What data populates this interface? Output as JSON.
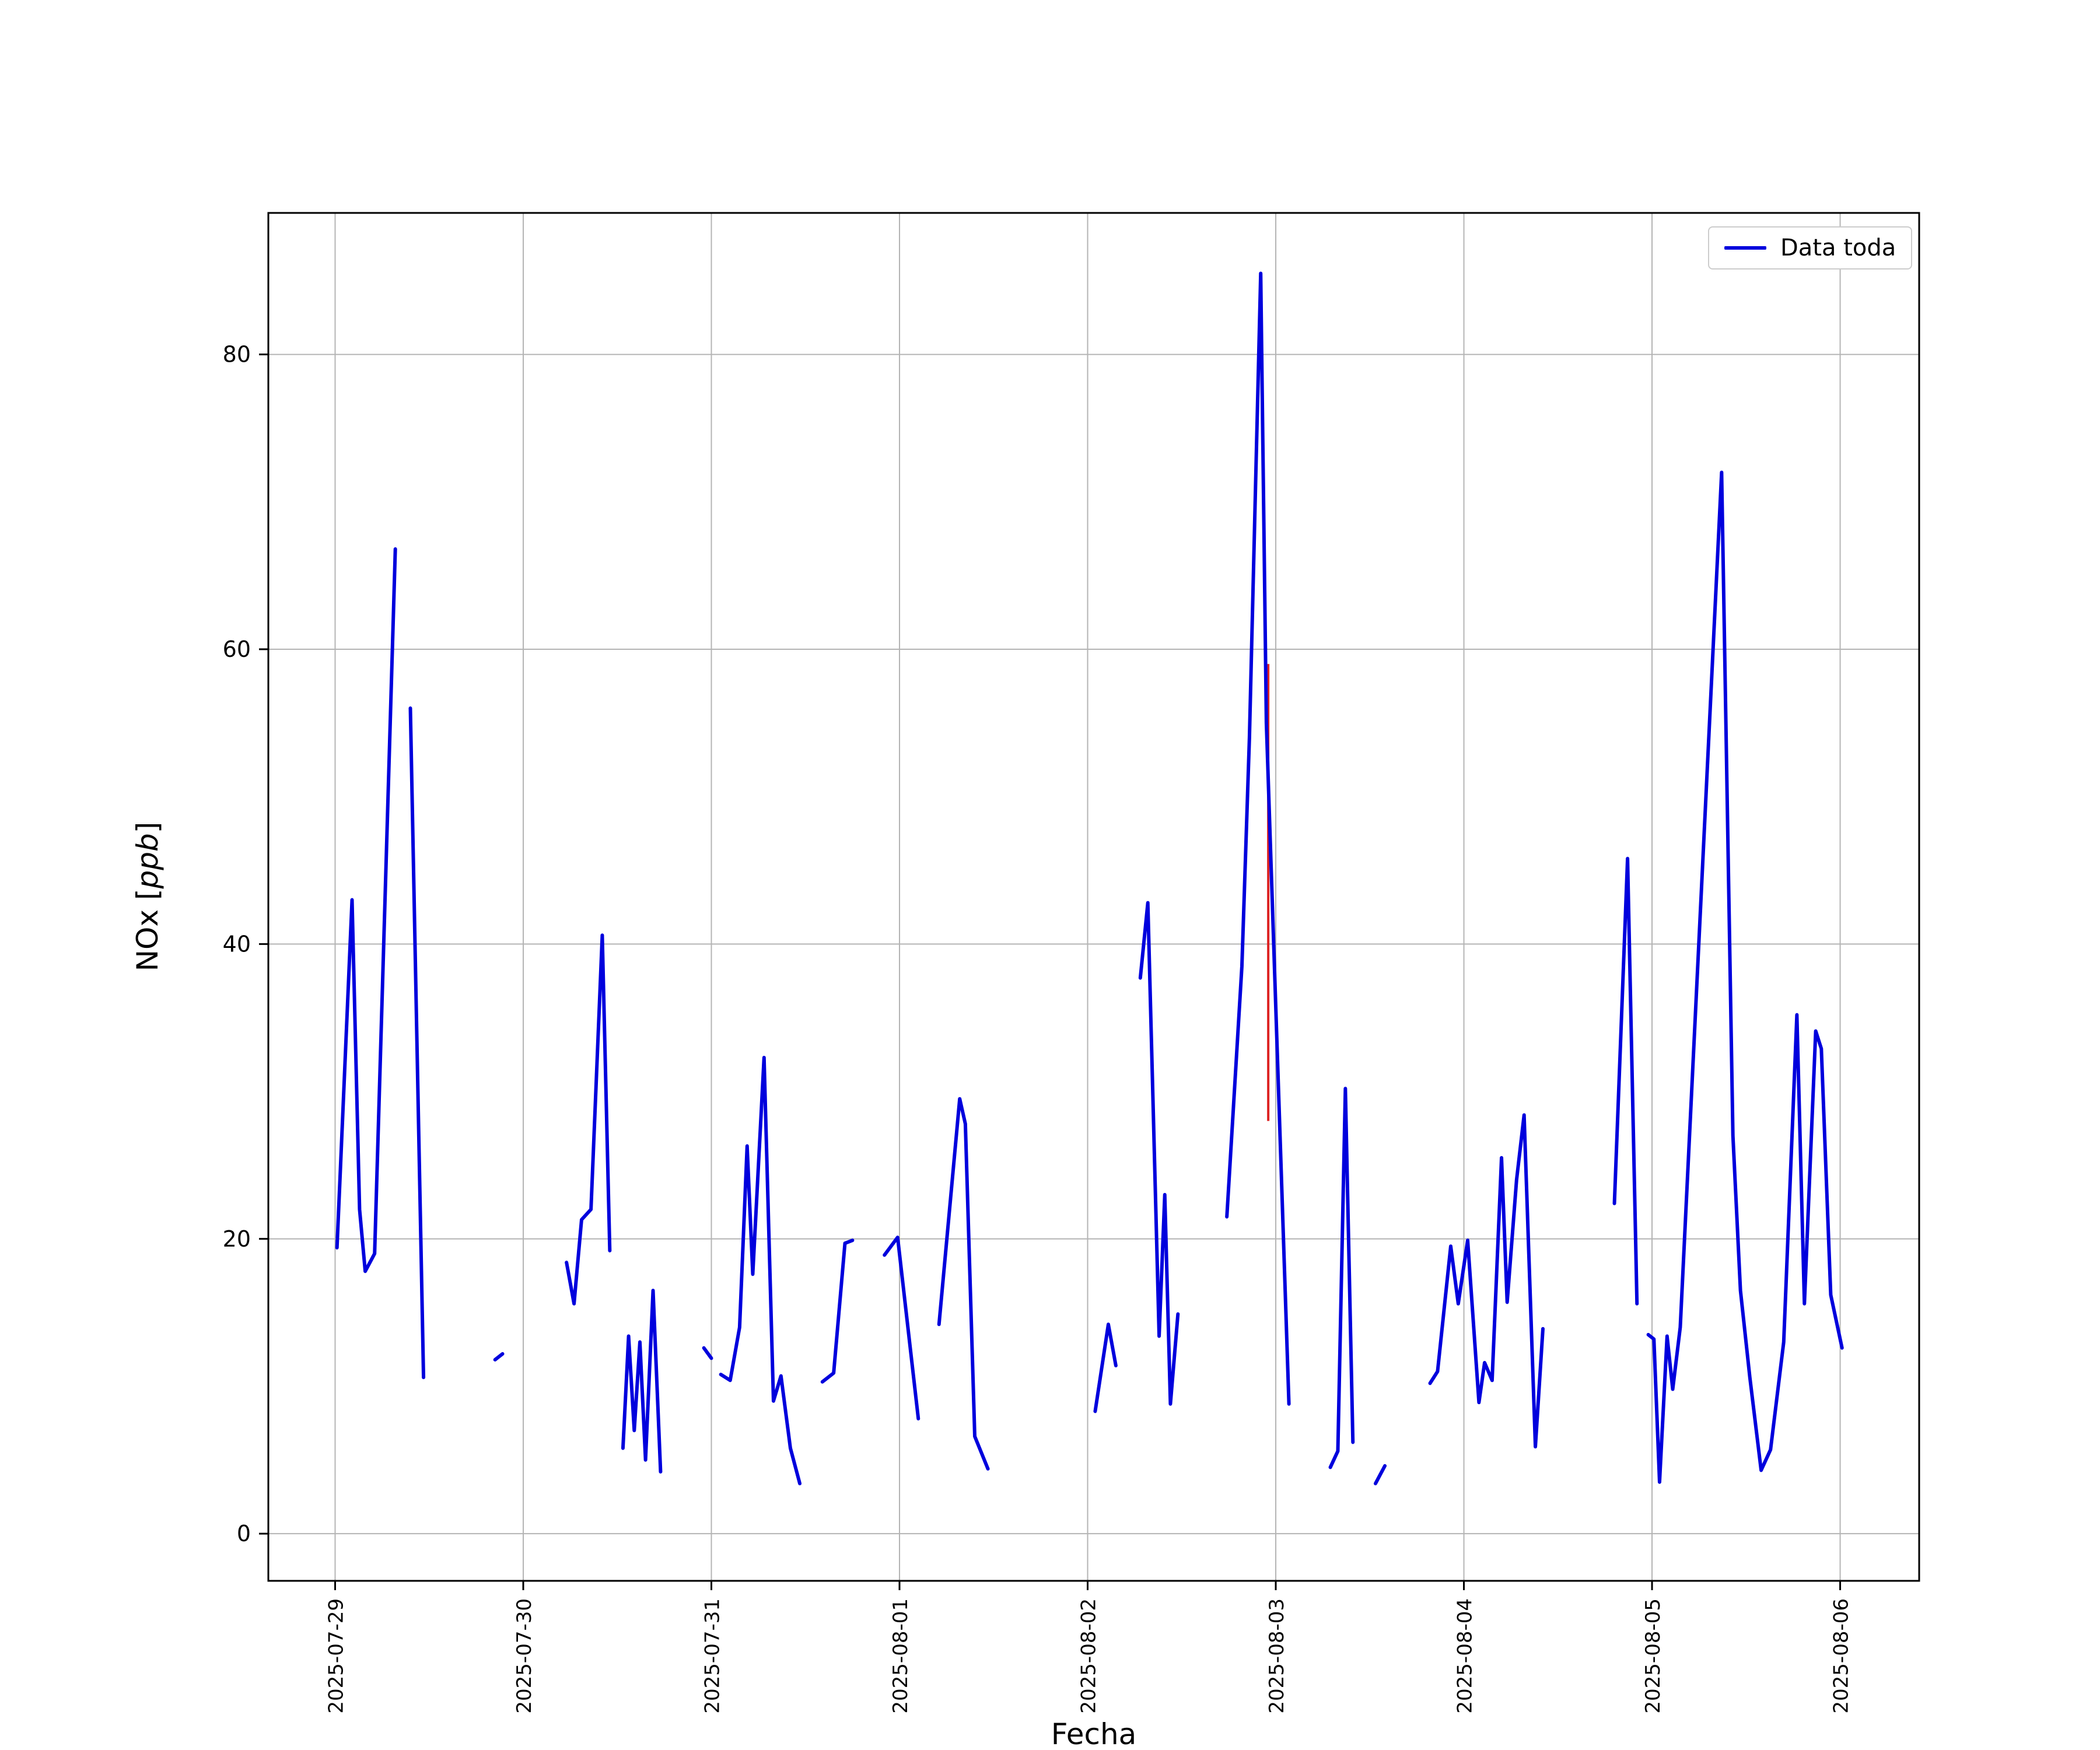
{
  "figure": {
    "xlabel": "Fecha",
    "ylabel_prefix": "NOx [",
    "ylabel_italic": "ppb",
    "ylabel_suffix": "]",
    "legend_label": "Data toda"
  },
  "chart_data": {
    "type": "line",
    "title": "",
    "xlabel": "Fecha",
    "ylabel": "NOx [ppb]",
    "legend": [
      "Data toda"
    ],
    "legend_position": "upper right",
    "grid": true,
    "line_color": "#0000dd",
    "grid_color": "#b4b4b4",
    "x_unit": "days since 2025-07-29 00:00",
    "x_tick_positions": [
      0,
      1,
      2,
      3,
      4,
      5,
      6,
      7,
      8
    ],
    "x_tick_labels": [
      "2025-07-29",
      "2025-07-30",
      "2025-07-31",
      "2025-08-01",
      "2025-08-02",
      "2025-08-03",
      "2025-08-04",
      "2025-08-05",
      "2025-08-06"
    ],
    "y_ticks": [
      0,
      20,
      40,
      60,
      80
    ],
    "xlim": [
      -0.355,
      8.42
    ],
    "ylim": [
      -3.2,
      89.6
    ],
    "annotations": [
      {
        "type": "vline-segment",
        "x": 4.96,
        "y_from": 28.0,
        "y_to": 59.0,
        "color": "#dd2222"
      }
    ],
    "series": [
      {
        "name": "Data toda",
        "color": "#0000dd",
        "segments": [
          [
            [
              0.01,
              19.4
            ],
            [
              0.09,
              43.0
            ],
            [
              0.13,
              22.0
            ],
            [
              0.16,
              17.8
            ],
            [
              0.21,
              19.0
            ],
            [
              0.32,
              66.8
            ]
          ],
          [
            [
              0.4,
              56.0
            ],
            [
              0.47,
              10.6
            ]
          ],
          [
            [
              0.85,
              11.8
            ],
            [
              0.89,
              12.2
            ]
          ],
          [
            [
              1.23,
              18.4
            ],
            [
              1.27,
              15.6
            ],
            [
              1.31,
              21.3
            ],
            [
              1.36,
              22.0
            ],
            [
              1.42,
              40.6
            ],
            [
              1.46,
              19.2
            ]
          ],
          [
            [
              1.53,
              5.8
            ],
            [
              1.56,
              13.4
            ],
            [
              1.59,
              7.0
            ],
            [
              1.62,
              13.0
            ],
            [
              1.65,
              5.0
            ],
            [
              1.69,
              16.5
            ],
            [
              1.73,
              4.2
            ]
          ],
          [
            [
              1.96,
              12.6
            ],
            [
              2.0,
              11.9
            ]
          ],
          [
            [
              2.05,
              10.8
            ],
            [
              2.1,
              10.4
            ],
            [
              2.15,
              14.0
            ],
            [
              2.19,
              26.3
            ],
            [
              2.22,
              17.6
            ],
            [
              2.28,
              32.3
            ],
            [
              2.33,
              9.0
            ],
            [
              2.37,
              10.7
            ],
            [
              2.42,
              5.8
            ],
            [
              2.47,
              3.4
            ]
          ],
          [
            [
              2.59,
              10.3
            ],
            [
              2.65,
              10.9
            ],
            [
              2.71,
              19.7
            ],
            [
              2.75,
              19.9
            ]
          ],
          [
            [
              2.92,
              18.9
            ],
            [
              2.99,
              20.1
            ],
            [
              3.1,
              7.8
            ]
          ],
          [
            [
              3.21,
              14.2
            ],
            [
              3.32,
              29.5
            ],
            [
              3.35,
              27.8
            ],
            [
              3.4,
              6.6
            ],
            [
              3.47,
              4.4
            ]
          ],
          [
            [
              4.04,
              8.3
            ],
            [
              4.11,
              14.2
            ],
            [
              4.15,
              11.4
            ]
          ],
          [
            [
              4.28,
              37.7
            ],
            [
              4.32,
              42.8
            ],
            [
              4.38,
              13.4
            ],
            [
              4.41,
              23.0
            ],
            [
              4.44,
              8.8
            ],
            [
              4.48,
              14.9
            ]
          ],
          [
            [
              4.74,
              21.5
            ],
            [
              4.82,
              38.5
            ],
            [
              4.86,
              54.0
            ],
            [
              4.92,
              85.5
            ],
            [
              4.95,
              55.0
            ],
            [
              5.07,
              8.8
            ]
          ],
          [
            [
              5.29,
              4.5
            ],
            [
              5.33,
              5.6
            ],
            [
              5.37,
              30.2
            ],
            [
              5.41,
              6.2
            ]
          ],
          [
            [
              5.53,
              3.4
            ],
            [
              5.58,
              4.6
            ]
          ],
          [
            [
              5.82,
              10.2
            ],
            [
              5.86,
              11.0
            ],
            [
              5.93,
              19.5
            ],
            [
              5.97,
              15.6
            ],
            [
              6.02,
              19.9
            ],
            [
              6.08,
              8.9
            ],
            [
              6.11,
              11.6
            ],
            [
              6.15,
              10.4
            ],
            [
              6.2,
              25.5
            ],
            [
              6.23,
              15.7
            ],
            [
              6.28,
              24.0
            ],
            [
              6.32,
              28.4
            ],
            [
              6.38,
              5.9
            ],
            [
              6.42,
              13.9
            ]
          ],
          [
            [
              6.8,
              22.4
            ],
            [
              6.87,
              45.8
            ],
            [
              6.92,
              15.6
            ]
          ],
          [
            [
              6.98,
              13.5
            ],
            [
              7.01,
              13.2
            ],
            [
              7.04,
              3.5
            ],
            [
              7.08,
              13.4
            ],
            [
              7.11,
              9.8
            ],
            [
              7.15,
              14.0
            ],
            [
              7.37,
              72.0
            ],
            [
              7.43,
              27.0
            ],
            [
              7.47,
              16.5
            ],
            [
              7.52,
              10.6
            ],
            [
              7.58,
              4.3
            ],
            [
              7.63,
              5.7
            ],
            [
              7.7,
              13.0
            ],
            [
              7.77,
              35.2
            ],
            [
              7.81,
              15.6
            ],
            [
              7.87,
              34.1
            ],
            [
              7.9,
              32.9
            ],
            [
              7.95,
              16.2
            ],
            [
              8.01,
              12.6
            ]
          ]
        ]
      }
    ]
  }
}
